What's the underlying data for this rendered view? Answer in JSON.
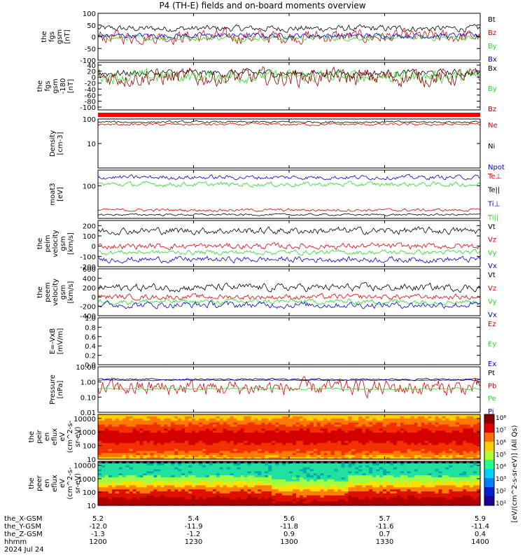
{
  "figure": {
    "title": "P4 (TH-E) fields and on-board moments overview",
    "date_label": "2024 Jul 24"
  },
  "colors": {
    "black": "#000000",
    "red": "#e00000",
    "green": "#22dd22",
    "blue": "#0000dd",
    "darkred": "#990000"
  },
  "chart_data": [
    {
      "type": "line",
      "id": "fgs",
      "ylabel": [
        "the",
        "fgs",
        "gsm",
        "[nT]"
      ],
      "ylim": [
        -100,
        100
      ],
      "yticks": [
        100,
        50,
        0,
        -50,
        -100
      ],
      "series": [
        {
          "name": "Bt",
          "color": "black",
          "base": 35,
          "amp": 12
        },
        {
          "name": "Bz",
          "color": "red",
          "base": 0,
          "amp": 25
        },
        {
          "name": "By",
          "color": "green",
          "base": -5,
          "amp": 10
        },
        {
          "name": "Bx",
          "color": "blue",
          "base": 5,
          "amp": 10
        }
      ]
    },
    {
      "type": "line",
      "id": "fgs180",
      "ylabel": [
        "the",
        "fgs",
        "gsm",
        "-180",
        "[nT]"
      ],
      "ylim": [
        -180,
        40
      ],
      "yticks": [
        40,
        20,
        0,
        -20,
        -40,
        -60,
        -80,
        -100
      ],
      "series": [
        {
          "name": "Bx",
          "color": "black",
          "base": -10,
          "amp": 15
        },
        {
          "name": "By",
          "color": "green",
          "base": -25,
          "amp": 25
        },
        {
          "name": "Bz",
          "color": "darkred",
          "base": -30,
          "amp": 35
        }
      ]
    },
    {
      "type": "line",
      "id": "density",
      "ylabel": [
        "Density",
        "[cm-3]"
      ],
      "ylim": [
        1,
        100
      ],
      "log": true,
      "yticks": [
        100,
        10
      ],
      "series": [
        {
          "name": "Ne",
          "color": "red",
          "base": 60,
          "amp": 8
        },
        {
          "name": "Ni",
          "color": "black",
          "base": 75,
          "amp": 8
        },
        {
          "name": "Npot",
          "color": "blue",
          "base": null,
          "amp": 0
        }
      ]
    },
    {
      "type": "line",
      "id": "temp",
      "ylabel": [
        "moat3",
        "[eV]"
      ],
      "ylim": [
        10,
        300
      ],
      "log": true,
      "yticks": [
        100
      ],
      "series": [
        {
          "name": "Te⊥",
          "color": "red",
          "base": 18,
          "amp": 2
        },
        {
          "name": "Te||",
          "color": "black",
          "base": 13,
          "amp": 1
        },
        {
          "name": "Ti⊥",
          "color": "blue",
          "base": 180,
          "amp": 30
        },
        {
          "name": "Ti||",
          "color": "green",
          "base": 110,
          "amp": 20
        }
      ]
    },
    {
      "type": "line",
      "id": "peim",
      "ylabel": [
        "the",
        "peim",
        "velocity",
        "gsm",
        "[km/s]"
      ],
      "ylim": [
        -200,
        250
      ],
      "yticks": [
        200,
        100,
        0,
        -100,
        -200
      ],
      "series": [
        {
          "name": "Vt",
          "color": "black",
          "base": 150,
          "amp": 30
        },
        {
          "name": "Vz",
          "color": "red",
          "base": 0,
          "amp": 25
        },
        {
          "name": "Vy",
          "color": "green",
          "base": -60,
          "amp": 20
        },
        {
          "name": "Vx",
          "color": "blue",
          "base": -130,
          "amp": 25
        }
      ]
    },
    {
      "type": "line",
      "id": "peem",
      "ylabel": [
        "the",
        "peem",
        "velocity",
        "gsm",
        "[km/s]"
      ],
      "ylim": [
        -400,
        600
      ],
      "yticks": [
        600,
        400,
        200,
        0,
        -200,
        -400
      ],
      "series": [
        {
          "name": "Vt",
          "color": "black",
          "base": 200,
          "amp": 70
        },
        {
          "name": "Vz",
          "color": "red",
          "base": 0,
          "amp": 50
        },
        {
          "name": "Vy",
          "color": "green",
          "base": -100,
          "amp": 50
        },
        {
          "name": "Vx",
          "color": "blue",
          "base": -170,
          "amp": 60
        }
      ]
    },
    {
      "type": "line",
      "id": "efield",
      "ylabel": [
        "E=-VxB",
        "[mV/m]"
      ],
      "ylim": [
        0,
        1
      ],
      "yticks": [
        "1.0",
        "0.8",
        "0.6",
        "0.4",
        "0.2",
        "0.0"
      ],
      "series": [
        {
          "name": "Ez",
          "color": "red",
          "base": null,
          "amp": 0
        },
        {
          "name": "Ey",
          "color": "green",
          "base": null,
          "amp": 0
        },
        {
          "name": "Ex",
          "color": "blue",
          "base": null,
          "amp": 0
        }
      ]
    },
    {
      "type": "line",
      "id": "pressure",
      "ylabel": [
        "Pressure",
        "[nPa]"
      ],
      "ylim": [
        0.01,
        10
      ],
      "log": true,
      "yticks": [
        "10.00",
        "1.00",
        "0.10",
        "0.01"
      ],
      "series": [
        {
          "name": "Pt",
          "color": "black",
          "base": 1.5,
          "amp": 0.2
        },
        {
          "name": "Pb",
          "color": "red",
          "base": 0.4,
          "amp": 0.3
        },
        {
          "name": "Pe",
          "color": "green",
          "base": 0.35,
          "amp": 0.05
        },
        {
          "name": "Pi",
          "color": "blue",
          "base": 1.3,
          "amp": 0.1
        }
      ]
    },
    {
      "type": "heatmap",
      "id": "peir",
      "ylabel": [
        "the",
        "peir",
        "en",
        "eflux",
        "eV",
        "(cm^2-s-",
        "sr-eV)"
      ],
      "ylim": [
        10,
        20000
      ],
      "log": true,
      "yticks": [
        10000,
        1000,
        100,
        10
      ]
    },
    {
      "type": "heatmap",
      "id": "peer",
      "ylabel": [
        "the",
        "peer",
        "en",
        "eflux",
        "eV",
        "(cm^2-s-",
        "sr-eV)"
      ],
      "ylim": [
        10,
        20000
      ],
      "log": true,
      "yticks": [
        10000,
        1000,
        100,
        10
      ]
    }
  ],
  "colorbar": {
    "ticks": [
      "10⁸",
      "10⁷",
      "10⁶",
      "10⁵",
      "10⁴",
      "10³",
      "10²",
      "10¹"
    ],
    "label": "[eV/(cm^2-s-sr-eV)] (All Qs)"
  },
  "xaxis": {
    "tick_hhmm": [
      "1200",
      "1230",
      "1300",
      "1330",
      "1400"
    ],
    "rows": [
      {
        "label": "the_X-GSM",
        "values": [
          "5.2",
          "5.4",
          "5.6",
          "5.7",
          "5.9"
        ]
      },
      {
        "label": "the_Y-GSM",
        "values": [
          "-12.0",
          "-11.9",
          "-11.8",
          "-11.6",
          "-11.4"
        ]
      },
      {
        "label": "the_Z-GSM",
        "values": [
          "-1.3",
          "-1.2",
          "0.9",
          "0.7",
          "0.4"
        ]
      },
      {
        "label": "hhmm",
        "values": [
          "1200",
          "1230",
          "1300",
          "1330",
          "1400"
        ]
      }
    ]
  }
}
